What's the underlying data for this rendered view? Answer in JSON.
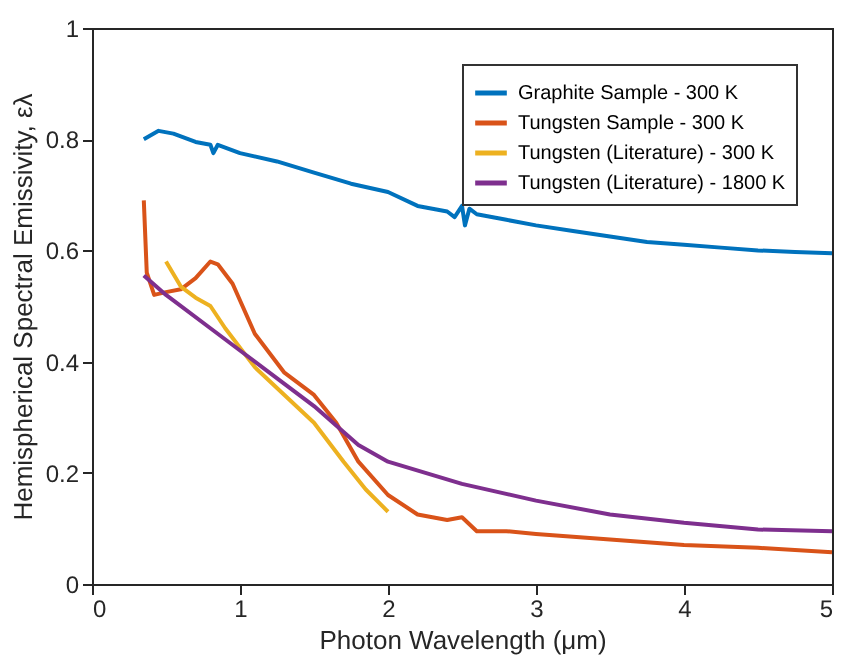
{
  "chart_data": {
    "type": "line",
    "xlabel": "Photon Wavelength (μm)",
    "ylabel": "Hemispherical Spectral Emissivity, ελ",
    "xlim": [
      0,
      5
    ],
    "ylim": [
      0,
      1
    ],
    "xticks": [
      0,
      1,
      2,
      3,
      4,
      5
    ],
    "yticks": [
      0,
      0.2,
      0.4,
      0.6,
      0.8,
      1
    ],
    "grid": false,
    "legend": "top right",
    "line_style": "solid",
    "marker": "none",
    "series": [
      {
        "name": "Graphite Sample - 300 K",
        "color": "#0072bd",
        "x": [
          0.35,
          0.45,
          0.55,
          0.7,
          0.8,
          0.82,
          0.85,
          1.0,
          1.25,
          1.5,
          1.75,
          2.0,
          2.2,
          2.3,
          2.4,
          2.45,
          2.5,
          2.52,
          2.55,
          2.6,
          2.8,
          3.0,
          3.25,
          3.5,
          3.75,
          4.0,
          4.25,
          4.5,
          4.75,
          5.0
        ],
        "values": [
          0.8,
          0.815,
          0.81,
          0.795,
          0.79,
          0.775,
          0.79,
          0.775,
          0.76,
          0.74,
          0.72,
          0.705,
          0.68,
          0.675,
          0.67,
          0.66,
          0.68,
          0.645,
          0.675,
          0.665,
          0.655,
          0.645,
          0.635,
          0.625,
          0.615,
          0.61,
          0.605,
          0.6,
          0.597,
          0.595
        ]
      },
      {
        "name": "Tungsten Sample - 300 K",
        "color": "#d95319",
        "x": [
          0.35,
          0.37,
          0.42,
          0.5,
          0.6,
          0.7,
          0.8,
          0.85,
          0.95,
          1.1,
          1.3,
          1.5,
          1.65,
          1.8,
          2.0,
          2.2,
          2.4,
          2.5,
          2.6,
          2.8,
          3.0,
          3.5,
          4.0,
          4.5,
          5.0
        ],
        "values": [
          0.69,
          0.56,
          0.52,
          0.525,
          0.53,
          0.55,
          0.58,
          0.575,
          0.54,
          0.45,
          0.38,
          0.34,
          0.29,
          0.22,
          0.16,
          0.125,
          0.115,
          0.12,
          0.095,
          0.095,
          0.09,
          0.08,
          0.07,
          0.065,
          0.057
        ]
      },
      {
        "name": "Tungsten (Literature) - 300 K",
        "color": "#edb120",
        "x": [
          0.5,
          0.6,
          0.7,
          0.8,
          0.9,
          1.1,
          1.3,
          1.5,
          1.7,
          1.85,
          2.0
        ],
        "values": [
          0.58,
          0.535,
          0.515,
          0.5,
          0.46,
          0.39,
          0.34,
          0.29,
          0.22,
          0.17,
          0.13
        ]
      },
      {
        "name": "Tungsten (Literature) - 1800 K",
        "color": "#7e2f8e",
        "x": [
          0.35,
          0.5,
          0.8,
          1.0,
          1.3,
          1.5,
          1.8,
          2.0,
          2.5,
          3.0,
          3.5,
          4.0,
          4.5,
          5.0
        ],
        "values": [
          0.555,
          0.52,
          0.46,
          0.42,
          0.36,
          0.32,
          0.25,
          0.22,
          0.18,
          0.15,
          0.125,
          0.11,
          0.098,
          0.095
        ]
      }
    ]
  }
}
